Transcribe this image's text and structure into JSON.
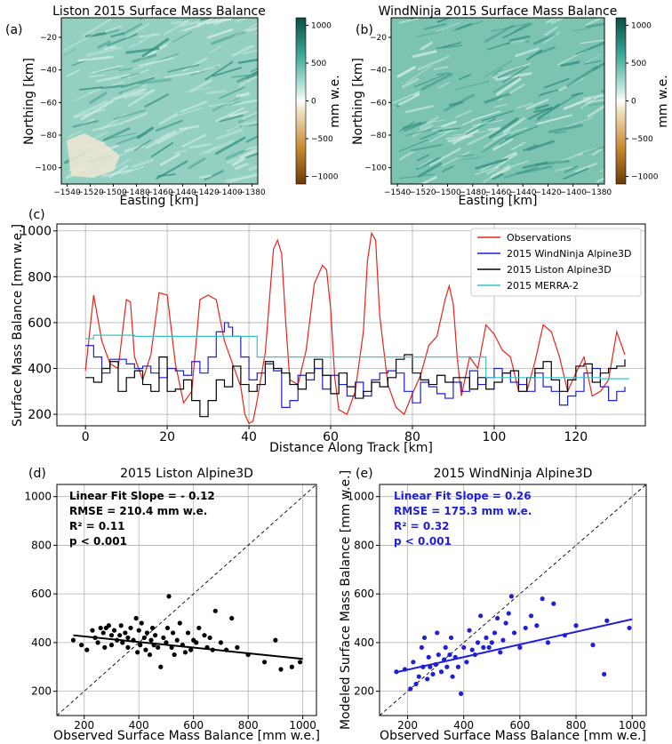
{
  "panels": {
    "a": {
      "letter": "(a)",
      "title": "Liston 2015 Surface Mass Balance",
      "xlabel": "Easting [km]",
      "ylabel": "Northing [km]",
      "xticks": [
        "−1540",
        "−1520",
        "−1500",
        "−1480",
        "−1460",
        "−1440",
        "−1420",
        "−1400",
        "−1380"
      ],
      "yticks": [
        "−20",
        "−40",
        "−60",
        "−80",
        "−100"
      ],
      "colorbar_label": "mm w.e.",
      "colorbar_ticks": [
        "1000",
        "500",
        "0",
        "−500",
        "−1000"
      ]
    },
    "b": {
      "letter": "(b)",
      "title": "WindNinja 2015 Surface Mass Balance",
      "xlabel": "Easting [km]",
      "ylabel": "Northing [km]",
      "xticks": [
        "−1540",
        "−1520",
        "−1500",
        "−1480",
        "−1460",
        "−1440",
        "−1420",
        "−1400",
        "−1380"
      ],
      "yticks": [
        "−20",
        "−40",
        "−60",
        "−80",
        "−100"
      ],
      "colorbar_label": "mm w.e.",
      "colorbar_ticks": [
        "1000",
        "500",
        "0",
        "−500",
        "−1000"
      ]
    },
    "c": {
      "letter": "(c)",
      "xlabel": "Distance Along Track [km]",
      "ylabel": "Surface Mass Balance [mm w.e.]",
      "xticks": [
        "0",
        "20",
        "40",
        "60",
        "80",
        "100",
        "120"
      ],
      "yticks": [
        "200",
        "400",
        "600",
        "800",
        "1000"
      ],
      "legend": [
        "Observations",
        "2015 WindNinja Alpine3D",
        "2015 Liston Alpine3D",
        "2015 MERRA-2"
      ]
    },
    "d": {
      "letter": "(d)",
      "title": "2015 Liston Alpine3D",
      "xlabel": "Observed Surface Mass Balance [mm w.e.]",
      "xticks": [
        "200",
        "400",
        "600",
        "800",
        "1000"
      ],
      "yticks": [
        "200",
        "400",
        "600",
        "800",
        "1000"
      ],
      "stats": [
        "Linear Fit Slope = - 0.12",
        "RMSE = 210.4 mm w.e.",
        "R² = 0.11",
        "p < 0.001"
      ]
    },
    "e": {
      "letter": "(e)",
      "title": "2015 WindNinja Alpine3D",
      "xlabel": "Observed Surface Mass Balance [mm w.e.]",
      "ylabel": "Modeled Surface Mass Balance [mm w.e.]",
      "xticks": [
        "200",
        "400",
        "600",
        "800",
        "1000"
      ],
      "yticks": [
        "200",
        "400",
        "600",
        "800",
        "1000"
      ],
      "stats": [
        "Linear Fit Slope = 0.26",
        "RMSE = 175.3 mm w.e.",
        "R² = 0.32",
        "p < 0.001"
      ]
    }
  },
  "colors": {
    "observations": "#e8231b",
    "windninja": "#1f1fd6",
    "liston": "#000000",
    "merra2": "#35c2c8",
    "map_base": "#8fcdbd",
    "cmap_pos": "#0b5b50",
    "cmap_neg": "#8a4a09"
  },
  "chart_data": [
    {
      "type": "heatmap",
      "title": "Liston 2015 Surface Mass Balance",
      "xlabel": "Easting [km]",
      "ylabel": "Northing [km]",
      "xlim": [
        -1545,
        -1375
      ],
      "ylim": [
        -110,
        -8
      ],
      "clim": [
        -1100,
        1100
      ],
      "colorbar_label": "mm w.e."
    },
    {
      "type": "heatmap",
      "title": "WindNinja 2015 Surface Mass Balance",
      "xlabel": "Easting [km]",
      "ylabel": "Northing [km]",
      "xlim": [
        -1545,
        -1375
      ],
      "ylim": [
        -110,
        -8
      ],
      "clim": [
        -1100,
        1100
      ],
      "colorbar_label": "mm w.e."
    },
    {
      "type": "line",
      "xlabel": "Distance Along Track [km]",
      "ylabel": "Surface Mass Balance [mm w.e.]",
      "xlim": [
        -7,
        137
      ],
      "ylim": [
        150,
        1030
      ],
      "legend_position": "top-right",
      "series": [
        {
          "name": "Observations",
          "x": [
            0,
            2,
            3,
            4,
            6,
            8,
            10,
            11,
            12,
            14,
            16,
            18,
            20,
            22,
            24,
            26,
            28,
            30,
            32,
            34,
            36,
            38,
            39,
            40,
            41,
            42,
            44,
            46,
            47,
            48,
            49,
            50,
            52,
            54,
            56,
            58,
            59,
            60,
            61,
            62,
            64,
            66,
            68,
            69,
            70,
            71,
            72,
            74,
            76,
            78,
            80,
            82,
            84,
            86,
            88,
            89,
            90,
            91,
            92,
            94,
            96,
            98,
            100,
            102,
            104,
            106,
            108,
            110,
            112,
            114,
            116,
            118,
            120,
            122,
            124,
            126,
            128,
            130,
            132
          ],
          "y": [
            390,
            720,
            620,
            520,
            420,
            400,
            700,
            690,
            450,
            350,
            460,
            730,
            720,
            420,
            250,
            300,
            700,
            720,
            700,
            520,
            420,
            320,
            200,
            160,
            170,
            260,
            470,
            920,
            960,
            900,
            600,
            350,
            330,
            480,
            770,
            850,
            830,
            660,
            360,
            220,
            200,
            300,
            560,
            870,
            990,
            960,
            630,
            330,
            230,
            200,
            290,
            370,
            500,
            540,
            700,
            760,
            680,
            440,
            280,
            450,
            400,
            590,
            550,
            480,
            450,
            300,
            300,
            430,
            590,
            560,
            450,
            300,
            380,
            450,
            280,
            300,
            350,
            560,
            460
          ]
        },
        {
          "name": "2015 WindNinja Alpine3D",
          "x": [
            0,
            2,
            4,
            6,
            8,
            10,
            12,
            14,
            16,
            18,
            20,
            22,
            24,
            26,
            28,
            30,
            32,
            34,
            35,
            36,
            38,
            40,
            42,
            44,
            46,
            48,
            50,
            52,
            54,
            56,
            58,
            60,
            62,
            64,
            66,
            68,
            70,
            72,
            74,
            76,
            78,
            80,
            82,
            84,
            86,
            88,
            90,
            92,
            94,
            96,
            98,
            100,
            102,
            104,
            106,
            108,
            110,
            112,
            114,
            116,
            118,
            120,
            122,
            124,
            126,
            128,
            130,
            132
          ],
          "y": [
            500,
            450,
            380,
            440,
            440,
            420,
            400,
            410,
            380,
            360,
            400,
            390,
            370,
            430,
            380,
            450,
            560,
            600,
            580,
            540,
            450,
            350,
            380,
            420,
            390,
            230,
            260,
            370,
            350,
            400,
            310,
            370,
            330,
            280,
            340,
            280,
            350,
            380,
            390,
            380,
            300,
            250,
            340,
            320,
            290,
            270,
            340,
            300,
            390,
            330,
            360,
            400,
            380,
            340,
            330,
            300,
            380,
            320,
            300,
            240,
            280,
            300,
            380,
            400,
            320,
            260,
            300,
            320
          ]
        },
        {
          "name": "2015 Liston Alpine3D",
          "x": [
            0,
            2,
            4,
            6,
            8,
            10,
            12,
            14,
            16,
            18,
            20,
            22,
            24,
            26,
            28,
            30,
            32,
            34,
            36,
            38,
            40,
            42,
            44,
            46,
            48,
            50,
            52,
            54,
            56,
            58,
            60,
            62,
            64,
            66,
            68,
            70,
            72,
            74,
            76,
            78,
            80,
            82,
            84,
            86,
            88,
            90,
            92,
            94,
            96,
            98,
            100,
            102,
            104,
            106,
            108,
            110,
            112,
            114,
            116,
            118,
            120,
            122,
            124,
            126,
            128,
            130,
            132
          ],
          "y": [
            360,
            340,
            400,
            430,
            300,
            360,
            390,
            330,
            300,
            450,
            300,
            310,
            350,
            260,
            190,
            260,
            350,
            320,
            410,
            330,
            300,
            330,
            430,
            400,
            380,
            330,
            310,
            380,
            440,
            370,
            290,
            380,
            320,
            270,
            300,
            340,
            320,
            360,
            440,
            460,
            380,
            350,
            330,
            370,
            340,
            360,
            360,
            310,
            360,
            310,
            340,
            380,
            390,
            300,
            360,
            400,
            430,
            350,
            300,
            350,
            410,
            420,
            340,
            380,
            400,
            410,
            440
          ]
        },
        {
          "name": "2015 MERRA-2",
          "x": [
            0,
            2,
            2,
            12,
            12,
            42,
            42,
            98,
            98,
            126,
            126,
            133
          ],
          "y": [
            530,
            530,
            545,
            545,
            540,
            540,
            450,
            450,
            360,
            360,
            355,
            355
          ]
        }
      ]
    },
    {
      "type": "scatter",
      "title": "2015 Liston Alpine3D",
      "xlabel": "Observed Surface Mass Balance [mm w.e.]",
      "xlim": [
        100,
        1050
      ],
      "ylim": [
        100,
        1050
      ],
      "reference_line": "1:1 dashed",
      "fit_line": {
        "x": [
          160,
          1000
        ],
        "y": [
          430,
          333
        ]
      },
      "points": {
        "x": [
          160,
          190,
          210,
          230,
          240,
          250,
          260,
          270,
          275,
          280,
          290,
          300,
          300,
          310,
          320,
          330,
          335,
          340,
          350,
          360,
          360,
          370,
          380,
          390,
          395,
          400,
          405,
          410,
          420,
          425,
          430,
          440,
          445,
          450,
          455,
          460,
          470,
          480,
          490,
          500,
          505,
          510,
          520,
          525,
          530,
          540,
          550,
          560,
          570,
          580,
          590,
          600,
          610,
          620,
          640,
          650,
          660,
          670,
          680,
          700,
          720,
          740,
          760,
          800,
          860,
          900,
          920,
          960,
          990
        ],
        "y": [
          410,
          390,
          370,
          450,
          420,
          400,
          460,
          440,
          380,
          460,
          470,
          430,
          390,
          450,
          410,
          430,
          470,
          400,
          440,
          420,
          380,
          460,
          410,
          500,
          360,
          450,
          390,
          480,
          420,
          370,
          440,
          350,
          410,
          460,
          390,
          430,
          380,
          300,
          420,
          400,
          460,
          590,
          380,
          440,
          350,
          410,
          480,
          390,
          360,
          440,
          370,
          410,
          400,
          460,
          430,
          380,
          420,
          370,
          530,
          400,
          370,
          500,
          380,
          350,
          320,
          410,
          290,
          300,
          320
        ]
      }
    },
    {
      "type": "scatter",
      "title": "2015 WindNinja Alpine3D",
      "xlabel": "Observed Surface Mass Balance [mm w.e.]",
      "ylabel": "Modeled Surface Mass Balance [mm w.e.]",
      "xlim": [
        100,
        1050
      ],
      "ylim": [
        100,
        1050
      ],
      "reference_line": "1:1 dashed",
      "fit_line": {
        "x": [
          160,
          1000
        ],
        "y": [
          278,
          496
        ]
      },
      "points": {
        "x": [
          160,
          190,
          210,
          220,
          230,
          240,
          250,
          255,
          260,
          270,
          275,
          280,
          290,
          300,
          305,
          310,
          320,
          330,
          335,
          340,
          350,
          355,
          360,
          370,
          380,
          390,
          400,
          410,
          420,
          430,
          440,
          450,
          460,
          470,
          480,
          490,
          500,
          510,
          520,
          530,
          540,
          550,
          560,
          570,
          580,
          600,
          620,
          640,
          660,
          680,
          700,
          720,
          760,
          800,
          860,
          900,
          910,
          990
        ],
        "y": [
          280,
          290,
          210,
          320,
          230,
          260,
          380,
          300,
          420,
          250,
          340,
          300,
          270,
          310,
          440,
          350,
          280,
          330,
          380,
          300,
          350,
          420,
          260,
          340,
          300,
          190,
          380,
          320,
          450,
          370,
          350,
          400,
          510,
          380,
          420,
          380,
          400,
          440,
          500,
          360,
          410,
          480,
          520,
          590,
          440,
          380,
          460,
          510,
          470,
          580,
          400,
          560,
          430,
          470,
          390,
          270,
          490,
          460
        ]
      }
    }
  ]
}
